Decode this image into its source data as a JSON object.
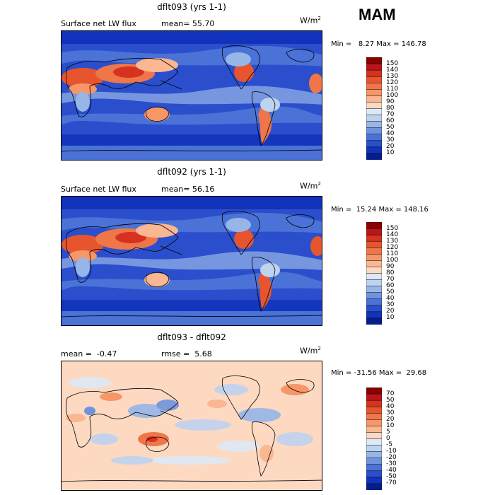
{
  "season": "MAM",
  "panels": [
    {
      "title": "dflt093 (yrs 1-1)",
      "left_label": "Surface net LW flux",
      "stat_label": "mean=",
      "stat_value": "55.70",
      "units": "W/m",
      "units_sup": "2",
      "minmax": "Min =   8.27 Max = 146.78",
      "levels": [
        150,
        140,
        130,
        120,
        110,
        100,
        90,
        80,
        70,
        60,
        50,
        40,
        30,
        20,
        10
      ],
      "colors": [
        "#8b0000",
        "#b8161a",
        "#d6321f",
        "#e6552e",
        "#ef7649",
        "#f79667",
        "#fbb692",
        "#fdd9c1",
        "#dde9f7",
        "#bed3f0",
        "#97b6e8",
        "#6f93dd",
        "#4b72d6",
        "#2b4fcc",
        "#1133bb",
        "#071d8a"
      ]
    },
    {
      "title": "dflt092 (yrs 1-1)",
      "left_label": "Surface net LW flux",
      "stat_label": "mean=",
      "stat_value": "56.16",
      "units": "W/m",
      "units_sup": "2",
      "minmax": "Min =  15.24 Max = 148.16",
      "levels": [
        150,
        140,
        130,
        120,
        110,
        100,
        90,
        80,
        70,
        60,
        50,
        40,
        30,
        20,
        10
      ],
      "colors": [
        "#8b0000",
        "#b8161a",
        "#d6321f",
        "#e6552e",
        "#ef7649",
        "#f79667",
        "#fbb692",
        "#fdd9c1",
        "#dde9f7",
        "#bed3f0",
        "#97b6e8",
        "#6f93dd",
        "#4b72d6",
        "#2b4fcc",
        "#1133bb",
        "#071d8a"
      ]
    },
    {
      "title": "dflt093 - dflt092",
      "left_label": "mean =  -0.47",
      "stat_label": "rmse =",
      "stat_value": "5.68",
      "units": "W/m",
      "units_sup": "2",
      "minmax": "Min = -31.56 Max =  29.68",
      "levels": [
        70,
        50,
        40,
        30,
        20,
        10,
        5,
        0,
        -5,
        -10,
        -20,
        -30,
        -40,
        -50,
        -70
      ],
      "colors": [
        "#8b0000",
        "#b8161a",
        "#d6321f",
        "#e6552e",
        "#ef7649",
        "#f79667",
        "#fbb692",
        "#fdd9c1",
        "#dde9f7",
        "#bed3f0",
        "#97b6e8",
        "#6f93dd",
        "#4b72d6",
        "#2b4fcc",
        "#1133bb",
        "#071d8a"
      ]
    }
  ],
  "chart_data": [
    {
      "type": "heatmap",
      "title": "dflt093 (yrs 1-1)",
      "field": "Surface net LW flux",
      "units": "W/m2",
      "mean": 55.7,
      "min": 8.27,
      "max": 146.78,
      "contour_levels": [
        10,
        20,
        30,
        40,
        50,
        60,
        70,
        80,
        90,
        100,
        110,
        120,
        130,
        140,
        150
      ]
    },
    {
      "type": "heatmap",
      "title": "dflt092 (yrs 1-1)",
      "field": "Surface net LW flux",
      "units": "W/m2",
      "mean": 56.16,
      "min": 15.24,
      "max": 148.16,
      "contour_levels": [
        10,
        20,
        30,
        40,
        50,
        60,
        70,
        80,
        90,
        100,
        110,
        120,
        130,
        140,
        150
      ]
    },
    {
      "type": "heatmap",
      "title": "dflt093 - dflt092",
      "units": "W/m2",
      "mean": -0.47,
      "rmse": 5.68,
      "min": -31.56,
      "max": 29.68,
      "contour_levels": [
        -70,
        -50,
        -40,
        -30,
        -20,
        -10,
        -5,
        0,
        5,
        10,
        20,
        30,
        40,
        50,
        70
      ]
    }
  ]
}
